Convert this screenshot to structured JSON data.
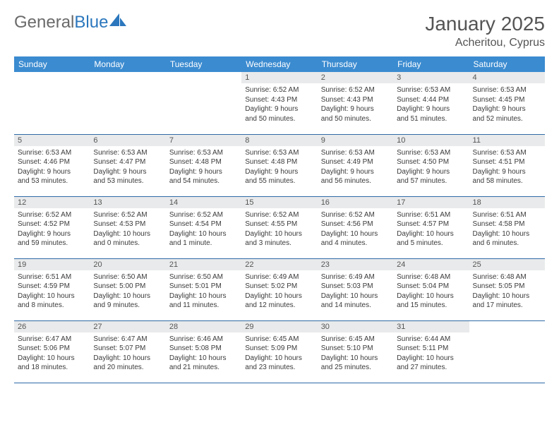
{
  "logo": {
    "part1": "General",
    "part2": "Blue"
  },
  "title": "January 2025",
  "location": "Acheritou, Cyprus",
  "colors": {
    "header_bg": "#3b8bd0",
    "header_text": "#ffffff",
    "daynum_bg": "#e9eaeb",
    "row_border": "#2f6aa6",
    "logo_gray": "#6a6a6a",
    "logo_blue": "#2b77bd"
  },
  "weekdays": [
    "Sunday",
    "Monday",
    "Tuesday",
    "Wednesday",
    "Thursday",
    "Friday",
    "Saturday"
  ],
  "weeks": [
    [
      {
        "n": "",
        "lines": [
          "",
          "",
          "",
          ""
        ],
        "empty": true
      },
      {
        "n": "",
        "lines": [
          "",
          "",
          "",
          ""
        ],
        "empty": true
      },
      {
        "n": "",
        "lines": [
          "",
          "",
          "",
          ""
        ],
        "empty": true
      },
      {
        "n": "1",
        "lines": [
          "Sunrise: 6:52 AM",
          "Sunset: 4:43 PM",
          "Daylight: 9 hours",
          "and 50 minutes."
        ]
      },
      {
        "n": "2",
        "lines": [
          "Sunrise: 6:52 AM",
          "Sunset: 4:43 PM",
          "Daylight: 9 hours",
          "and 50 minutes."
        ]
      },
      {
        "n": "3",
        "lines": [
          "Sunrise: 6:53 AM",
          "Sunset: 4:44 PM",
          "Daylight: 9 hours",
          "and 51 minutes."
        ]
      },
      {
        "n": "4",
        "lines": [
          "Sunrise: 6:53 AM",
          "Sunset: 4:45 PM",
          "Daylight: 9 hours",
          "and 52 minutes."
        ]
      }
    ],
    [
      {
        "n": "5",
        "lines": [
          "Sunrise: 6:53 AM",
          "Sunset: 4:46 PM",
          "Daylight: 9 hours",
          "and 53 minutes."
        ]
      },
      {
        "n": "6",
        "lines": [
          "Sunrise: 6:53 AM",
          "Sunset: 4:47 PM",
          "Daylight: 9 hours",
          "and 53 minutes."
        ]
      },
      {
        "n": "7",
        "lines": [
          "Sunrise: 6:53 AM",
          "Sunset: 4:48 PM",
          "Daylight: 9 hours",
          "and 54 minutes."
        ]
      },
      {
        "n": "8",
        "lines": [
          "Sunrise: 6:53 AM",
          "Sunset: 4:48 PM",
          "Daylight: 9 hours",
          "and 55 minutes."
        ]
      },
      {
        "n": "9",
        "lines": [
          "Sunrise: 6:53 AM",
          "Sunset: 4:49 PM",
          "Daylight: 9 hours",
          "and 56 minutes."
        ]
      },
      {
        "n": "10",
        "lines": [
          "Sunrise: 6:53 AM",
          "Sunset: 4:50 PM",
          "Daylight: 9 hours",
          "and 57 minutes."
        ]
      },
      {
        "n": "11",
        "lines": [
          "Sunrise: 6:53 AM",
          "Sunset: 4:51 PM",
          "Daylight: 9 hours",
          "and 58 minutes."
        ]
      }
    ],
    [
      {
        "n": "12",
        "lines": [
          "Sunrise: 6:52 AM",
          "Sunset: 4:52 PM",
          "Daylight: 9 hours",
          "and 59 minutes."
        ]
      },
      {
        "n": "13",
        "lines": [
          "Sunrise: 6:52 AM",
          "Sunset: 4:53 PM",
          "Daylight: 10 hours",
          "and 0 minutes."
        ]
      },
      {
        "n": "14",
        "lines": [
          "Sunrise: 6:52 AM",
          "Sunset: 4:54 PM",
          "Daylight: 10 hours",
          "and 1 minute."
        ]
      },
      {
        "n": "15",
        "lines": [
          "Sunrise: 6:52 AM",
          "Sunset: 4:55 PM",
          "Daylight: 10 hours",
          "and 3 minutes."
        ]
      },
      {
        "n": "16",
        "lines": [
          "Sunrise: 6:52 AM",
          "Sunset: 4:56 PM",
          "Daylight: 10 hours",
          "and 4 minutes."
        ]
      },
      {
        "n": "17",
        "lines": [
          "Sunrise: 6:51 AM",
          "Sunset: 4:57 PM",
          "Daylight: 10 hours",
          "and 5 minutes."
        ]
      },
      {
        "n": "18",
        "lines": [
          "Sunrise: 6:51 AM",
          "Sunset: 4:58 PM",
          "Daylight: 10 hours",
          "and 6 minutes."
        ]
      }
    ],
    [
      {
        "n": "19",
        "lines": [
          "Sunrise: 6:51 AM",
          "Sunset: 4:59 PM",
          "Daylight: 10 hours",
          "and 8 minutes."
        ]
      },
      {
        "n": "20",
        "lines": [
          "Sunrise: 6:50 AM",
          "Sunset: 5:00 PM",
          "Daylight: 10 hours",
          "and 9 minutes."
        ]
      },
      {
        "n": "21",
        "lines": [
          "Sunrise: 6:50 AM",
          "Sunset: 5:01 PM",
          "Daylight: 10 hours",
          "and 11 minutes."
        ]
      },
      {
        "n": "22",
        "lines": [
          "Sunrise: 6:49 AM",
          "Sunset: 5:02 PM",
          "Daylight: 10 hours",
          "and 12 minutes."
        ]
      },
      {
        "n": "23",
        "lines": [
          "Sunrise: 6:49 AM",
          "Sunset: 5:03 PM",
          "Daylight: 10 hours",
          "and 14 minutes."
        ]
      },
      {
        "n": "24",
        "lines": [
          "Sunrise: 6:48 AM",
          "Sunset: 5:04 PM",
          "Daylight: 10 hours",
          "and 15 minutes."
        ]
      },
      {
        "n": "25",
        "lines": [
          "Sunrise: 6:48 AM",
          "Sunset: 5:05 PM",
          "Daylight: 10 hours",
          "and 17 minutes."
        ]
      }
    ],
    [
      {
        "n": "26",
        "lines": [
          "Sunrise: 6:47 AM",
          "Sunset: 5:06 PM",
          "Daylight: 10 hours",
          "and 18 minutes."
        ]
      },
      {
        "n": "27",
        "lines": [
          "Sunrise: 6:47 AM",
          "Sunset: 5:07 PM",
          "Daylight: 10 hours",
          "and 20 minutes."
        ]
      },
      {
        "n": "28",
        "lines": [
          "Sunrise: 6:46 AM",
          "Sunset: 5:08 PM",
          "Daylight: 10 hours",
          "and 21 minutes."
        ]
      },
      {
        "n": "29",
        "lines": [
          "Sunrise: 6:45 AM",
          "Sunset: 5:09 PM",
          "Daylight: 10 hours",
          "and 23 minutes."
        ]
      },
      {
        "n": "30",
        "lines": [
          "Sunrise: 6:45 AM",
          "Sunset: 5:10 PM",
          "Daylight: 10 hours",
          "and 25 minutes."
        ]
      },
      {
        "n": "31",
        "lines": [
          "Sunrise: 6:44 AM",
          "Sunset: 5:11 PM",
          "Daylight: 10 hours",
          "and 27 minutes."
        ]
      },
      {
        "n": "",
        "lines": [
          "",
          "",
          "",
          ""
        ],
        "empty": true
      }
    ]
  ]
}
